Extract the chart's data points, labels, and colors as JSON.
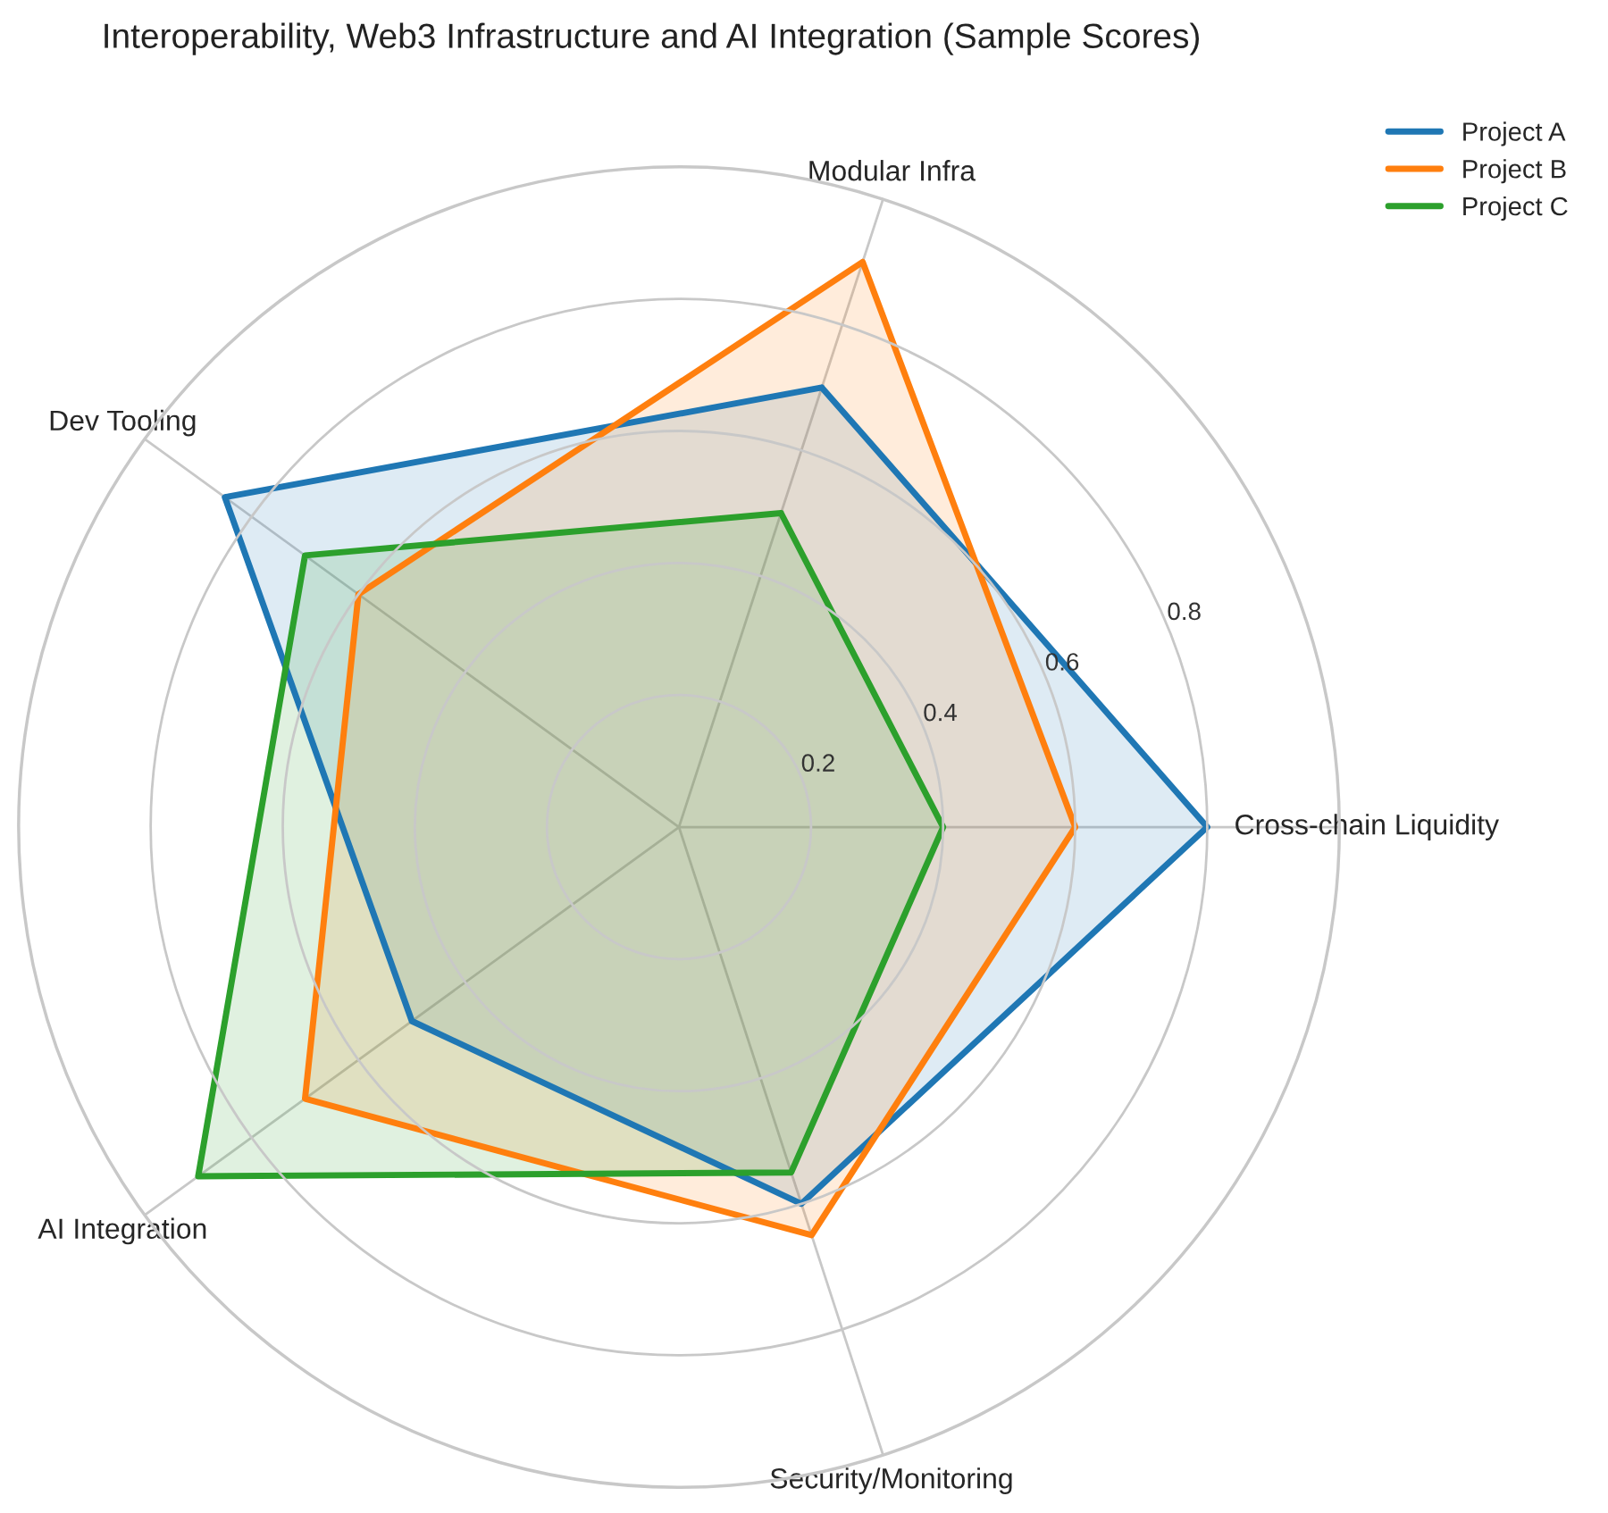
{
  "chart_data": {
    "type": "radar",
    "title": "Interoperability, Web3 Infrastructure and AI Integration (Sample Scores)",
    "categories": [
      "Modular Infra",
      "Cross-chain Liquidity",
      "Security/Monitoring",
      "AI Integration",
      "Dev Tooling"
    ],
    "series": [
      {
        "name": "Project A",
        "color": "#1f77b4",
        "values": [
          0.7,
          0.8,
          0.6,
          0.5,
          0.85
        ]
      },
      {
        "name": "Project B",
        "color": "#ff7f0e",
        "values": [
          0.9,
          0.6,
          0.65,
          0.7,
          0.6
        ]
      },
      {
        "name": "Project C",
        "color": "#2ca02c",
        "values": [
          0.5,
          0.4,
          0.55,
          0.9,
          0.7
        ]
      }
    ],
    "ylim": [
      0,
      1
    ],
    "yticks": [
      0.2,
      0.4,
      0.6,
      0.8
    ],
    "grid": true,
    "legend": "top right"
  }
}
